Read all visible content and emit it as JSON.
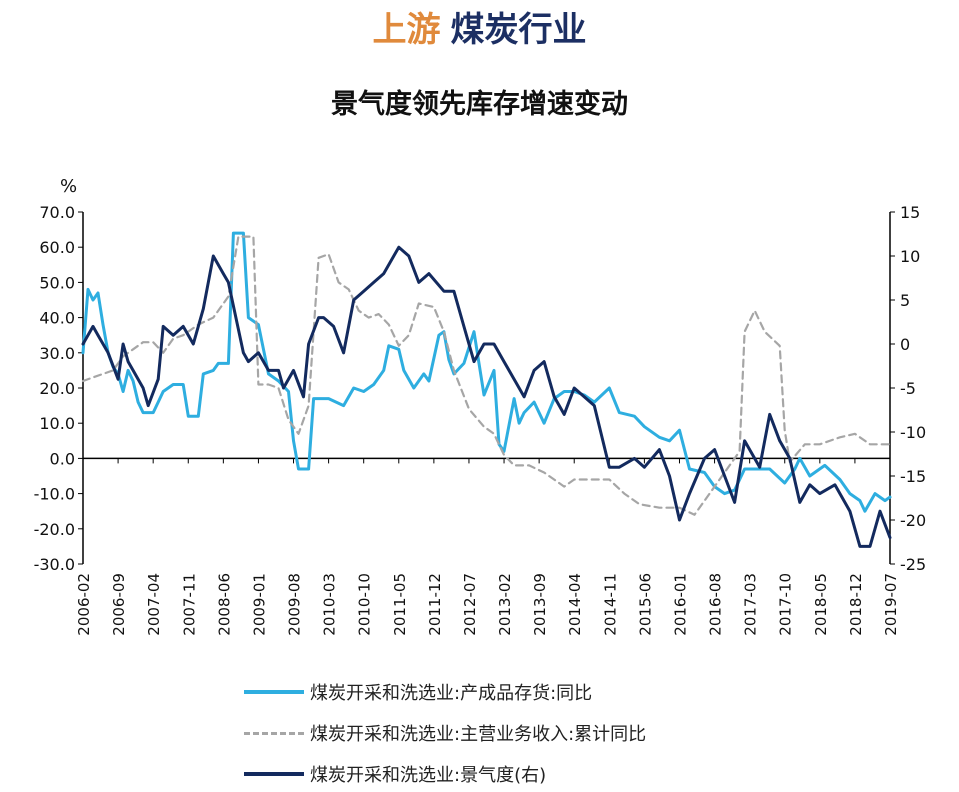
{
  "header": {
    "part1": "上游",
    "part2": "煤炭行业"
  },
  "chart_data": {
    "type": "line",
    "title": "景气度领先库存增速变动",
    "left_unit": "%",
    "left_axis": {
      "ylim": [
        -30,
        70
      ],
      "ticks": [
        "70.0",
        "60.0",
        "50.0",
        "40.0",
        "30.0",
        "20.0",
        "10.0",
        "0.0",
        "-10.0",
        "-20.0",
        "-30.0"
      ]
    },
    "right_axis": {
      "ylim": [
        -25,
        15
      ],
      "ticks": [
        "15",
        "10",
        "5",
        "0",
        "-5",
        "-10",
        "-15",
        "-20",
        "-25"
      ]
    },
    "x_tick_labels": [
      "2006-02",
      "2006-09",
      "2007-04",
      "2007-11",
      "2008-06",
      "2009-01",
      "2009-08",
      "2010-03",
      "2010-10",
      "2011-05",
      "2011-12",
      "2012-07",
      "2013-02",
      "2013-09",
      "2014-04",
      "2014-11",
      "2015-06",
      "2016-01",
      "2016-08",
      "2017-03",
      "2017-10",
      "2018-05",
      "2018-12",
      "2019-07"
    ],
    "x_range": [
      "2006-02",
      "2019-07"
    ],
    "legend_position": "bottom",
    "series": [
      {
        "name": "煤炭开采和洗选业:产成品存货:同比",
        "axis": "left",
        "color": "#2eaee0",
        "dash": "solid",
        "points": [
          [
            "2006-02",
            30
          ],
          [
            "2006-03",
            48
          ],
          [
            "2006-04",
            45
          ],
          [
            "2006-05",
            47
          ],
          [
            "2006-06",
            38
          ],
          [
            "2006-07",
            30
          ],
          [
            "2006-08",
            26
          ],
          [
            "2006-09",
            24
          ],
          [
            "2006-10",
            19
          ],
          [
            "2006-11",
            25
          ],
          [
            "2006-12",
            22
          ],
          [
            "2007-01",
            16
          ],
          [
            "2007-02",
            13
          ],
          [
            "2007-04",
            13
          ],
          [
            "2007-05",
            16
          ],
          [
            "2007-06",
            19
          ],
          [
            "2007-08",
            21
          ],
          [
            "2007-10",
            21
          ],
          [
            "2007-11",
            12
          ],
          [
            "2008-01",
            12
          ],
          [
            "2008-02",
            24
          ],
          [
            "2008-04",
            25
          ],
          [
            "2008-05",
            27
          ],
          [
            "2008-07",
            27
          ],
          [
            "2008-08",
            64
          ],
          [
            "2008-10",
            64
          ],
          [
            "2008-11",
            40
          ],
          [
            "2009-01",
            38
          ],
          [
            "2009-03",
            24
          ],
          [
            "2009-05",
            22
          ],
          [
            "2009-07",
            19
          ],
          [
            "2009-08",
            5
          ],
          [
            "2009-09",
            -3
          ],
          [
            "2009-11",
            -3
          ],
          [
            "2009-12",
            17
          ],
          [
            "2010-03",
            17
          ],
          [
            "2010-06",
            15
          ],
          [
            "2010-08",
            20
          ],
          [
            "2010-10",
            19
          ],
          [
            "2010-12",
            21
          ],
          [
            "2011-02",
            25
          ],
          [
            "2011-03",
            32
          ],
          [
            "2011-05",
            31
          ],
          [
            "2011-06",
            25
          ],
          [
            "2011-08",
            20
          ],
          [
            "2011-10",
            24
          ],
          [
            "2011-11",
            22
          ],
          [
            "2012-01",
            35
          ],
          [
            "2012-02",
            36
          ],
          [
            "2012-03",
            28
          ],
          [
            "2012-04",
            24
          ],
          [
            "2012-06",
            27
          ],
          [
            "2012-08",
            36
          ],
          [
            "2012-09",
            27
          ],
          [
            "2012-10",
            18
          ],
          [
            "2012-12",
            25
          ],
          [
            "2013-01",
            4
          ],
          [
            "2013-02",
            2
          ],
          [
            "2013-04",
            17
          ],
          [
            "2013-05",
            10
          ],
          [
            "2013-06",
            13
          ],
          [
            "2013-08",
            16
          ],
          [
            "2013-10",
            10
          ],
          [
            "2013-12",
            17
          ],
          [
            "2014-02",
            19
          ],
          [
            "2014-04",
            19
          ],
          [
            "2014-06",
            18
          ],
          [
            "2014-08",
            16
          ],
          [
            "2014-11",
            20
          ],
          [
            "2015-01",
            13
          ],
          [
            "2015-04",
            12
          ],
          [
            "2015-06",
            9
          ],
          [
            "2015-09",
            6
          ],
          [
            "2015-11",
            5
          ],
          [
            "2016-01",
            8
          ],
          [
            "2016-03",
            -3
          ],
          [
            "2016-06",
            -4
          ],
          [
            "2016-08",
            -8
          ],
          [
            "2016-10",
            -10
          ],
          [
            "2016-12",
            -9
          ],
          [
            "2017-02",
            -3
          ],
          [
            "2017-05",
            -3
          ],
          [
            "2017-07",
            -3
          ],
          [
            "2017-10",
            -7
          ],
          [
            "2017-12",
            -3
          ],
          [
            "2018-01",
            0
          ],
          [
            "2018-03",
            -5
          ],
          [
            "2018-06",
            -2
          ],
          [
            "2018-09",
            -6
          ],
          [
            "2018-11",
            -10
          ],
          [
            "2019-01",
            -12
          ],
          [
            "2019-02",
            -15
          ],
          [
            "2019-04",
            -10
          ],
          [
            "2019-06",
            -12
          ],
          [
            "2019-07",
            -11
          ]
        ]
      },
      {
        "name": "煤炭开采和洗选业:主营业务收入:累计同比",
        "axis": "left",
        "color": "#a6a6a6",
        "dash": "dashed",
        "points": [
          [
            "2006-02",
            22
          ],
          [
            "2006-04",
            23
          ],
          [
            "2006-06",
            24
          ],
          [
            "2006-08",
            25
          ],
          [
            "2006-10",
            29
          ],
          [
            "2006-12",
            31
          ],
          [
            "2007-02",
            33
          ],
          [
            "2007-04",
            33
          ],
          [
            "2007-06",
            30
          ],
          [
            "2007-08",
            34
          ],
          [
            "2007-10",
            35
          ],
          [
            "2008-01",
            38
          ],
          [
            "2008-04",
            40
          ],
          [
            "2008-07",
            46
          ],
          [
            "2008-09",
            63
          ],
          [
            "2008-12",
            63
          ],
          [
            "2009-01",
            21
          ],
          [
            "2009-03",
            21
          ],
          [
            "2009-05",
            20
          ],
          [
            "2009-07",
            11
          ],
          [
            "2009-09",
            7
          ],
          [
            "2009-11",
            15
          ],
          [
            "2010-01",
            57
          ],
          [
            "2010-03",
            58
          ],
          [
            "2010-05",
            50
          ],
          [
            "2010-07",
            48
          ],
          [
            "2010-09",
            42
          ],
          [
            "2010-11",
            40
          ],
          [
            "2011-01",
            41
          ],
          [
            "2011-03",
            38
          ],
          [
            "2011-05",
            32
          ],
          [
            "2011-07",
            35
          ],
          [
            "2011-09",
            44
          ],
          [
            "2011-12",
            43
          ],
          [
            "2012-02",
            36
          ],
          [
            "2012-04",
            25
          ],
          [
            "2012-07",
            14
          ],
          [
            "2012-10",
            9
          ],
          [
            "2012-12",
            7
          ],
          [
            "2013-02",
            1
          ],
          [
            "2013-04",
            -2
          ],
          [
            "2013-07",
            -2
          ],
          [
            "2013-10",
            -4
          ],
          [
            "2014-02",
            -8
          ],
          [
            "2014-04",
            -6
          ],
          [
            "2014-07",
            -6
          ],
          [
            "2014-11",
            -6
          ],
          [
            "2015-02",
            -10
          ],
          [
            "2015-05",
            -13
          ],
          [
            "2015-09",
            -14
          ],
          [
            "2016-01",
            -14
          ],
          [
            "2016-04",
            -16
          ],
          [
            "2016-07",
            -10
          ],
          [
            "2016-11",
            -2
          ],
          [
            "2017-01",
            2
          ],
          [
            "2017-02",
            36
          ],
          [
            "2017-04",
            42
          ],
          [
            "2017-06",
            36
          ],
          [
            "2017-09",
            32
          ],
          [
            "2017-10",
            8
          ],
          [
            "2017-11",
            -1
          ],
          [
            "2018-02",
            4
          ],
          [
            "2018-05",
            4
          ],
          [
            "2018-09",
            6
          ],
          [
            "2018-12",
            7
          ],
          [
            "2019-03",
            4
          ],
          [
            "2019-07",
            4
          ]
        ]
      },
      {
        "name": "煤炭开采和洗选业:景气度(右)",
        "axis": "right",
        "color": "#132a5e",
        "dash": "solid",
        "points": [
          [
            "2006-02",
            0
          ],
          [
            "2006-04",
            2
          ],
          [
            "2006-05",
            1
          ],
          [
            "2006-07",
            -1
          ],
          [
            "2006-09",
            -4
          ],
          [
            "2006-10",
            0
          ],
          [
            "2006-11",
            -2
          ],
          [
            "2006-12",
            -3
          ],
          [
            "2007-02",
            -5
          ],
          [
            "2007-03",
            -7
          ],
          [
            "2007-05",
            -4
          ],
          [
            "2007-06",
            2
          ],
          [
            "2007-08",
            1
          ],
          [
            "2007-10",
            2
          ],
          [
            "2007-12",
            0
          ],
          [
            "2008-02",
            4
          ],
          [
            "2008-04",
            10
          ],
          [
            "2008-06",
            8
          ],
          [
            "2008-07",
            7
          ],
          [
            "2008-10",
            -1
          ],
          [
            "2008-11",
            -2
          ],
          [
            "2009-01",
            -1
          ],
          [
            "2009-03",
            -3
          ],
          [
            "2009-05",
            -3
          ],
          [
            "2009-06",
            -5
          ],
          [
            "2009-08",
            -3
          ],
          [
            "2009-10",
            -6
          ],
          [
            "2009-11",
            0
          ],
          [
            "2010-01",
            3
          ],
          [
            "2010-02",
            3
          ],
          [
            "2010-04",
            2
          ],
          [
            "2010-06",
            -1
          ],
          [
            "2010-08",
            5
          ],
          [
            "2010-10",
            6
          ],
          [
            "2010-12",
            7
          ],
          [
            "2011-02",
            8
          ],
          [
            "2011-05",
            11
          ],
          [
            "2011-07",
            10
          ],
          [
            "2011-09",
            7
          ],
          [
            "2011-11",
            8
          ],
          [
            "2012-02",
            6
          ],
          [
            "2012-04",
            6
          ],
          [
            "2012-06",
            2
          ],
          [
            "2012-08",
            -2
          ],
          [
            "2012-10",
            0
          ],
          [
            "2012-12",
            0
          ],
          [
            "2013-02",
            -2
          ],
          [
            "2013-04",
            -4
          ],
          [
            "2013-06",
            -6
          ],
          [
            "2013-08",
            -3
          ],
          [
            "2013-10",
            -2
          ],
          [
            "2013-12",
            -6
          ],
          [
            "2014-02",
            -8
          ],
          [
            "2014-04",
            -5
          ],
          [
            "2014-06",
            -6
          ],
          [
            "2014-08",
            -7
          ],
          [
            "2014-11",
            -14
          ],
          [
            "2015-01",
            -14
          ],
          [
            "2015-04",
            -13
          ],
          [
            "2015-06",
            -14
          ],
          [
            "2015-09",
            -12
          ],
          [
            "2015-11",
            -15
          ],
          [
            "2016-01",
            -20
          ],
          [
            "2016-03",
            -17
          ],
          [
            "2016-06",
            -13
          ],
          [
            "2016-08",
            -12
          ],
          [
            "2016-10",
            -15
          ],
          [
            "2016-12",
            -18
          ],
          [
            "2017-02",
            -11
          ],
          [
            "2017-05",
            -14
          ],
          [
            "2017-07",
            -8
          ],
          [
            "2017-09",
            -11
          ],
          [
            "2017-11",
            -13
          ],
          [
            "2018-01",
            -18
          ],
          [
            "2018-03",
            -16
          ],
          [
            "2018-05",
            -17
          ],
          [
            "2018-08",
            -16
          ],
          [
            "2018-11",
            -19
          ],
          [
            "2019-01",
            -23
          ],
          [
            "2019-03",
            -23
          ],
          [
            "2019-05",
            -19
          ],
          [
            "2019-07",
            -22
          ]
        ]
      }
    ]
  }
}
